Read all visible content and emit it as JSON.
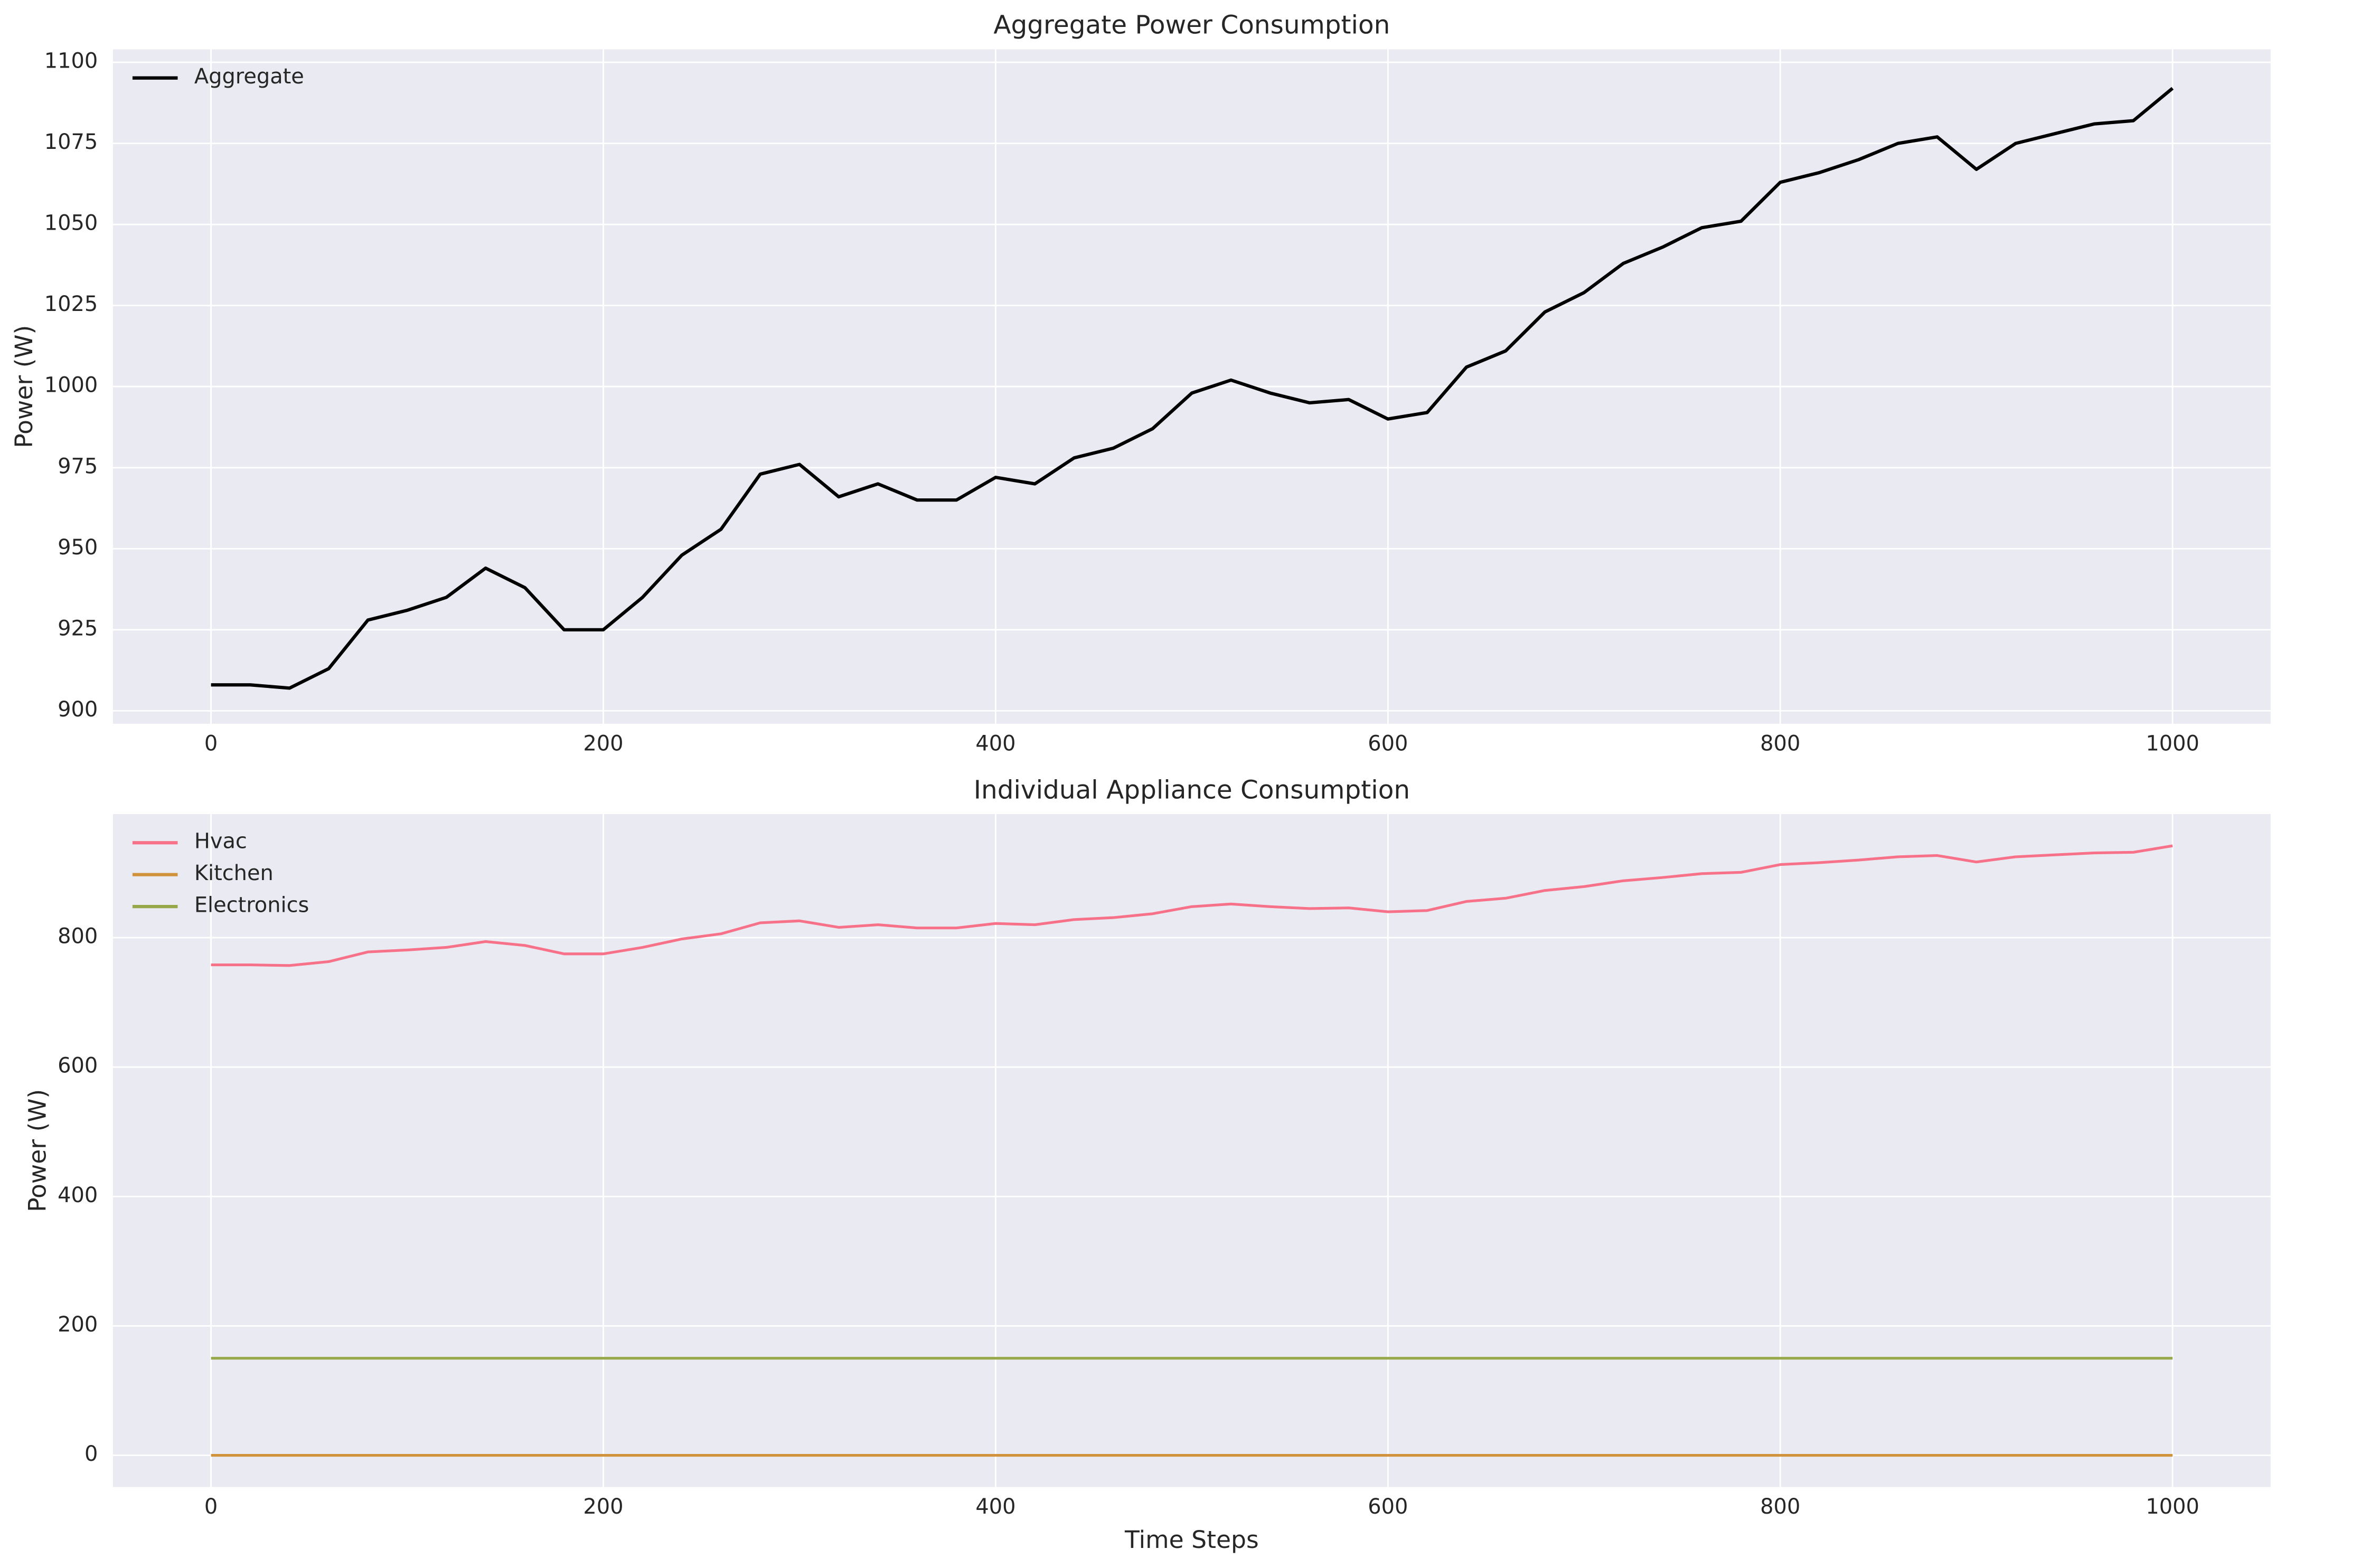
{
  "chart_data": [
    {
      "type": "line",
      "title": "Aggregate Power Consumption",
      "ylabel": "Power (W)",
      "x": [
        0,
        20,
        40,
        60,
        80,
        100,
        120,
        140,
        160,
        180,
        200,
        220,
        240,
        260,
        280,
        300,
        320,
        340,
        360,
        380,
        400,
        420,
        440,
        460,
        480,
        500,
        520,
        540,
        560,
        580,
        600,
        620,
        640,
        660,
        680,
        700,
        720,
        740,
        760,
        780,
        800,
        820,
        840,
        860,
        880,
        900,
        920,
        940,
        960,
        980,
        1000
      ],
      "series": [
        {
          "name": "Aggregate",
          "color": "#000000",
          "values": [
            908,
            908,
            907,
            913,
            928,
            931,
            935,
            944,
            938,
            925,
            925,
            935,
            948,
            956,
            973,
            976,
            966,
            970,
            965,
            965,
            972,
            970,
            978,
            981,
            987,
            998,
            1002,
            998,
            995,
            996,
            990,
            992,
            1006,
            1011,
            1023,
            1029,
            1038,
            1043,
            1049,
            1051,
            1063,
            1066,
            1070,
            1075,
            1077,
            1067,
            1075,
            1078,
            1081,
            1082,
            1092
          ]
        }
      ],
      "xlim": [
        -50,
        1050
      ],
      "ylim": [
        896,
        1104
      ],
      "xticks": [
        0,
        200,
        400,
        600,
        800,
        1000
      ],
      "yticks": [
        900,
        925,
        950,
        975,
        1000,
        1025,
        1050,
        1075,
        1100
      ],
      "grid": true,
      "legend": "upper left"
    },
    {
      "type": "line",
      "title": "Individual Appliance Consumption",
      "xlabel": "Time Steps",
      "ylabel": "Power (W)",
      "x": [
        0,
        20,
        40,
        60,
        80,
        100,
        120,
        140,
        160,
        180,
        200,
        220,
        240,
        260,
        280,
        300,
        320,
        340,
        360,
        380,
        400,
        420,
        440,
        460,
        480,
        500,
        520,
        540,
        560,
        580,
        600,
        620,
        640,
        660,
        680,
        700,
        720,
        740,
        760,
        780,
        800,
        820,
        840,
        860,
        880,
        900,
        920,
        940,
        960,
        980,
        1000
      ],
      "series": [
        {
          "name": "Hvac",
          "color": "#f77189",
          "values": [
            758,
            758,
            757,
            763,
            778,
            781,
            785,
            794,
            788,
            775,
            775,
            785,
            798,
            806,
            823,
            826,
            816,
            820,
            815,
            815,
            822,
            820,
            828,
            831,
            837,
            848,
            852,
            848,
            845,
            846,
            840,
            842,
            856,
            861,
            873,
            879,
            888,
            893,
            899,
            901,
            913,
            916,
            920,
            925,
            927,
            917,
            925,
            928,
            931,
            932,
            942
          ]
        },
        {
          "name": "Kitchen",
          "color": "#d0923a",
          "values": [
            0,
            0,
            0,
            0,
            0,
            0,
            0,
            0,
            0,
            0,
            0,
            0,
            0,
            0,
            0,
            0,
            0,
            0,
            0,
            0,
            0,
            0,
            0,
            0,
            0,
            0,
            0,
            0,
            0,
            0,
            0,
            0,
            0,
            0,
            0,
            0,
            0,
            0,
            0,
            0,
            0,
            0,
            0,
            0,
            0,
            0,
            0,
            0,
            0,
            0,
            0
          ]
        },
        {
          "name": "Electronics",
          "color": "#97a84a",
          "values": [
            150,
            150,
            150,
            150,
            150,
            150,
            150,
            150,
            150,
            150,
            150,
            150,
            150,
            150,
            150,
            150,
            150,
            150,
            150,
            150,
            150,
            150,
            150,
            150,
            150,
            150,
            150,
            150,
            150,
            150,
            150,
            150,
            150,
            150,
            150,
            150,
            150,
            150,
            150,
            150,
            150,
            150,
            150,
            150,
            150,
            150,
            150,
            150,
            150,
            150,
            150
          ]
        }
      ],
      "xlim": [
        -50,
        1050
      ],
      "ylim": [
        -49,
        991
      ],
      "xticks": [
        0,
        200,
        400,
        600,
        800,
        1000
      ],
      "yticks": [
        0,
        200,
        400,
        600,
        800
      ],
      "grid": true,
      "legend": "upper left"
    }
  ]
}
